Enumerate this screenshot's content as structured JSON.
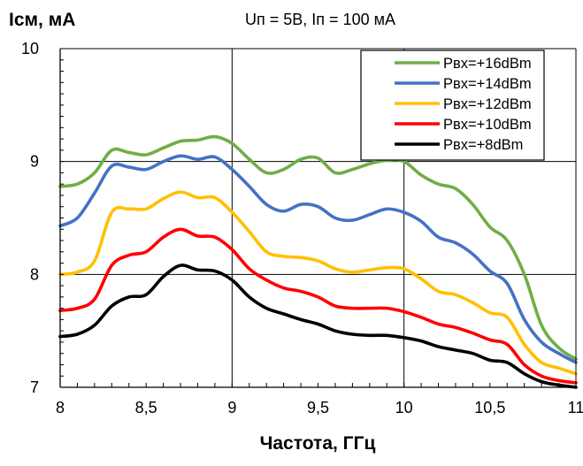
{
  "chart_data": {
    "type": "line",
    "ylabel": "Iсм, мА",
    "subtitle": "Uп = 5В, Iп = 100 мА",
    "xlabel": "Частота, ГГц",
    "xlim": [
      8,
      11
    ],
    "ylim": [
      7,
      10
    ],
    "xticks": [
      "8",
      "8,5",
      "9",
      "9,5",
      "10",
      "10,5",
      "11"
    ],
    "yticks": [
      "7",
      "8",
      "9",
      "10"
    ],
    "grid": true,
    "legend_position": "top-right",
    "series": [
      {
        "name": "Pвх=+16dBm",
        "color": "#70AD47",
        "x": [
          8.0,
          8.1,
          8.2,
          8.3,
          8.4,
          8.5,
          8.6,
          8.7,
          8.8,
          8.9,
          9.0,
          9.1,
          9.2,
          9.3,
          9.4,
          9.5,
          9.6,
          9.7,
          9.8,
          9.9,
          10.0,
          10.1,
          10.2,
          10.3,
          10.4,
          10.5,
          10.6,
          10.7,
          10.8,
          10.9,
          11.0
        ],
        "y": [
          8.78,
          8.8,
          8.9,
          9.1,
          9.08,
          9.06,
          9.12,
          9.18,
          9.19,
          9.22,
          9.16,
          9.02,
          8.9,
          8.93,
          9.02,
          9.03,
          8.9,
          8.93,
          8.98,
          9.01,
          9.0,
          8.88,
          8.8,
          8.76,
          8.62,
          8.42,
          8.3,
          8.0,
          7.55,
          7.35,
          7.25
        ]
      },
      {
        "name": "Pвх=+14dBm",
        "color": "#4472C4",
        "x": [
          8.0,
          8.1,
          8.2,
          8.3,
          8.4,
          8.5,
          8.6,
          8.7,
          8.8,
          8.9,
          9.0,
          9.1,
          9.2,
          9.3,
          9.4,
          9.5,
          9.6,
          9.7,
          9.8,
          9.9,
          10.0,
          10.1,
          10.2,
          10.3,
          10.4,
          10.5,
          10.6,
          10.7,
          10.8,
          10.9,
          11.0
        ],
        "y": [
          8.43,
          8.5,
          8.72,
          8.96,
          8.95,
          8.93,
          9.0,
          9.05,
          9.02,
          9.04,
          8.93,
          8.78,
          8.62,
          8.56,
          8.62,
          8.6,
          8.5,
          8.48,
          8.53,
          8.58,
          8.55,
          8.47,
          8.33,
          8.28,
          8.18,
          8.03,
          7.92,
          7.6,
          7.4,
          7.3,
          7.22
        ]
      },
      {
        "name": "Pвх=+12dBm",
        "color": "#FFC000",
        "x": [
          8.0,
          8.1,
          8.2,
          8.3,
          8.4,
          8.5,
          8.6,
          8.7,
          8.8,
          8.9,
          9.0,
          9.1,
          9.2,
          9.3,
          9.4,
          9.5,
          9.6,
          9.7,
          9.8,
          9.9,
          10.0,
          10.1,
          10.2,
          10.3,
          10.4,
          10.5,
          10.6,
          10.7,
          10.8,
          10.9,
          11.0
        ],
        "y": [
          8.0,
          8.02,
          8.12,
          8.55,
          8.58,
          8.58,
          8.67,
          8.73,
          8.68,
          8.68,
          8.55,
          8.38,
          8.2,
          8.16,
          8.15,
          8.12,
          8.05,
          8.02,
          8.04,
          8.06,
          8.05,
          7.96,
          7.85,
          7.82,
          7.75,
          7.66,
          7.62,
          7.38,
          7.22,
          7.17,
          7.12
        ]
      },
      {
        "name": "Pвх=+10dBm",
        "color": "#FF0000",
        "x": [
          8.0,
          8.1,
          8.2,
          8.3,
          8.4,
          8.5,
          8.6,
          8.7,
          8.8,
          8.9,
          9.0,
          9.1,
          9.2,
          9.3,
          9.4,
          9.5,
          9.6,
          9.7,
          9.8,
          9.9,
          10.0,
          10.1,
          10.2,
          10.3,
          10.4,
          10.5,
          10.6,
          10.7,
          10.8,
          10.9,
          11.0
        ],
        "y": [
          7.68,
          7.7,
          7.78,
          8.08,
          8.17,
          8.2,
          8.33,
          8.4,
          8.34,
          8.33,
          8.22,
          8.05,
          7.95,
          7.88,
          7.85,
          7.8,
          7.72,
          7.7,
          7.7,
          7.7,
          7.67,
          7.62,
          7.56,
          7.53,
          7.48,
          7.42,
          7.38,
          7.2,
          7.1,
          7.06,
          7.04
        ]
      },
      {
        "name": "Pвх=+8dBm",
        "color": "#000000",
        "x": [
          8.0,
          8.1,
          8.2,
          8.3,
          8.4,
          8.5,
          8.6,
          8.7,
          8.8,
          8.9,
          9.0,
          9.1,
          9.2,
          9.3,
          9.4,
          9.5,
          9.6,
          9.7,
          9.8,
          9.9,
          10.0,
          10.1,
          10.2,
          10.3,
          10.4,
          10.5,
          10.6,
          10.7,
          10.8,
          10.9,
          11.0
        ],
        "y": [
          7.45,
          7.47,
          7.55,
          7.72,
          7.8,
          7.82,
          7.98,
          8.08,
          8.04,
          8.03,
          7.95,
          7.8,
          7.7,
          7.65,
          7.6,
          7.56,
          7.5,
          7.47,
          7.46,
          7.46,
          7.44,
          7.41,
          7.36,
          7.33,
          7.3,
          7.24,
          7.22,
          7.12,
          7.05,
          7.02,
          7.0
        ]
      }
    ]
  }
}
